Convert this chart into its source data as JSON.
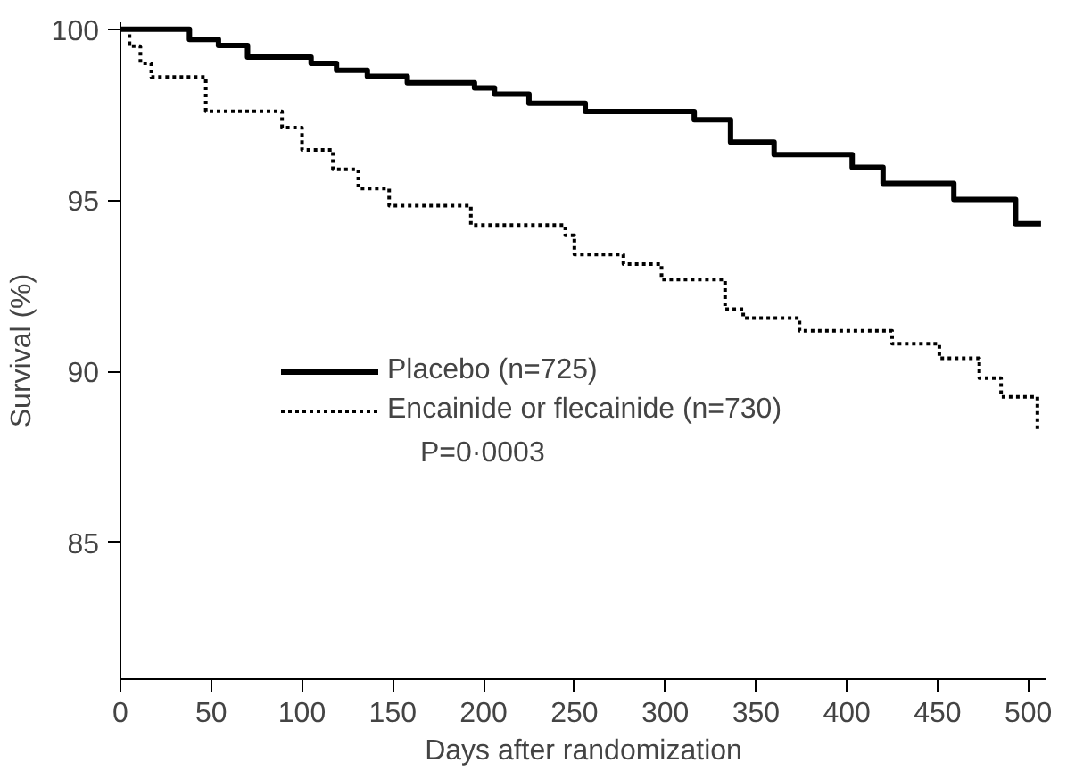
{
  "chart_data": {
    "type": "step",
    "xlabel": "Days after randomization",
    "ylabel": "Survival (%)",
    "xlim": [
      0,
      510
    ],
    "ylim": [
      81,
      100.2
    ],
    "xticks": [
      0,
      50,
      100,
      150,
      200,
      250,
      300,
      350,
      400,
      450,
      500
    ],
    "yticks": [
      85,
      90,
      95,
      100
    ],
    "grid": false,
    "legend": "bottom",
    "marker": "none",
    "series": [
      {
        "name": "Placebo (n=725)",
        "color": "#000000",
        "line_style": "solid",
        "x": [
          0,
          38,
          54,
          70,
          105,
          119,
          136,
          158,
          195,
          206,
          225,
          256,
          316,
          336,
          360,
          403,
          420,
          459,
          493,
          507
        ],
        "values": [
          100,
          99.7,
          99.52,
          99.18,
          99.0,
          98.8,
          98.62,
          98.43,
          98.28,
          98.1,
          97.83,
          97.59,
          97.35,
          96.7,
          96.33,
          95.96,
          95.49,
          95.02,
          94.31,
          94.31
        ]
      },
      {
        "name": "Encainide or flecainide (n=730)",
        "color": "#000000",
        "line_style": "dotted",
        "x": [
          0,
          5,
          11,
          17,
          47,
          89,
          100,
          117,
          131,
          148,
          193,
          245,
          250,
          277,
          298,
          333,
          343,
          374,
          425,
          451,
          473,
          485,
          505
        ],
        "values": [
          100,
          99.5,
          99.0,
          98.6,
          97.6,
          97.12,
          96.47,
          95.9,
          95.34,
          94.84,
          94.27,
          93.97,
          93.41,
          93.13,
          92.68,
          91.81,
          91.55,
          91.18,
          90.8,
          90.38,
          89.8,
          89.25,
          88.3
        ]
      }
    ],
    "annotations": [
      "P=0·0003"
    ]
  }
}
